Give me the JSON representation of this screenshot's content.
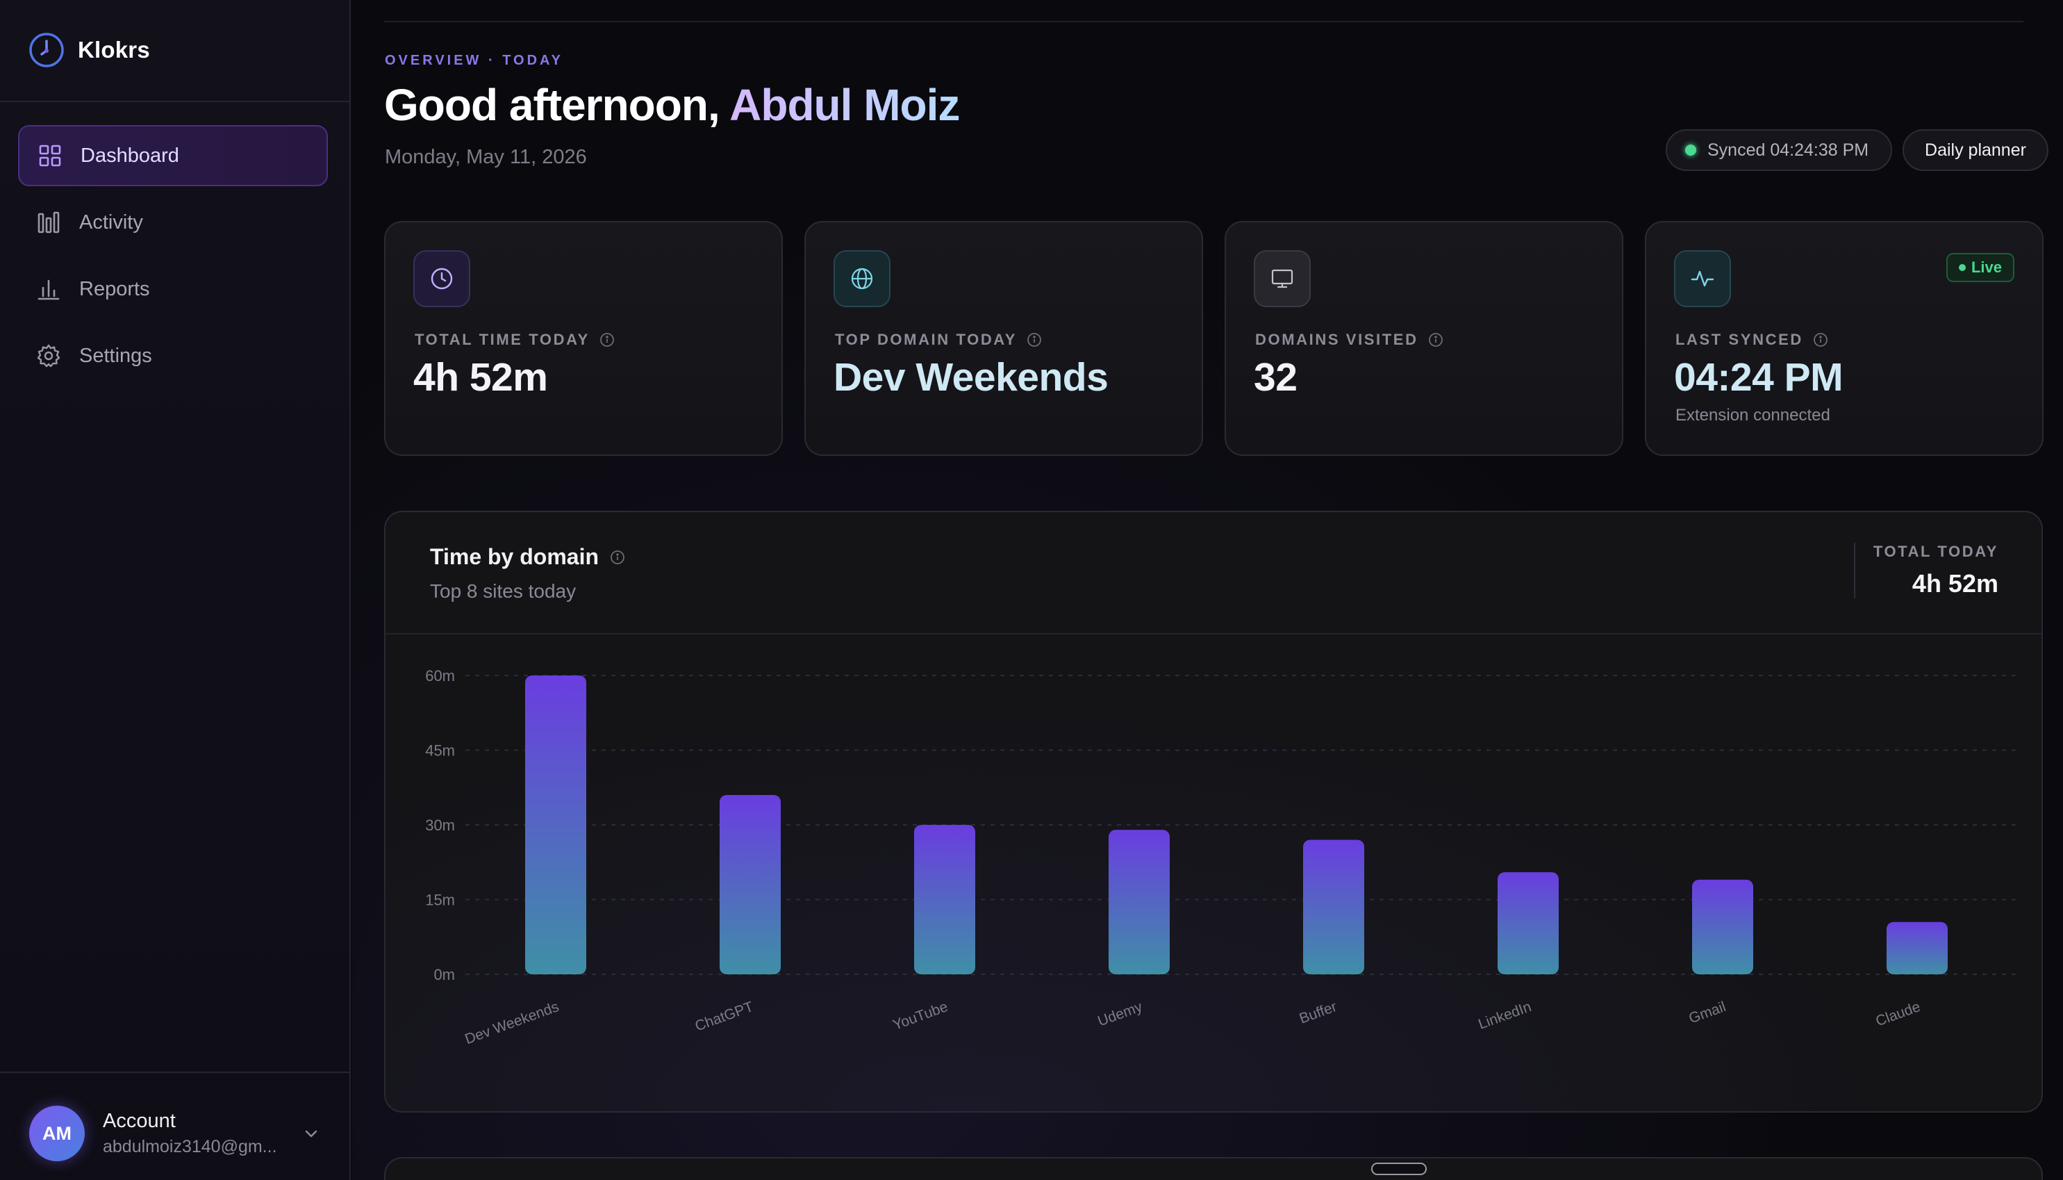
{
  "brand": {
    "name": "Klokrs"
  },
  "sidebar": {
    "items": [
      {
        "label": "Dashboard",
        "icon": "grid-icon",
        "active": true
      },
      {
        "label": "Activity",
        "icon": "activity-bars-icon",
        "active": false
      },
      {
        "label": "Reports",
        "icon": "bar-chart-icon",
        "active": false
      },
      {
        "label": "Settings",
        "icon": "gear-icon",
        "active": false
      }
    ],
    "account": {
      "initials": "AM",
      "label": "Account",
      "email": "abdulmoiz3140@gm..."
    }
  },
  "header": {
    "eyebrow": "OVERVIEW · TODAY",
    "greeting_prefix": "Good afternoon, ",
    "greeting_name": "Abdul Moiz",
    "date": "Monday, May 11, 2026",
    "sync_status": "Synced 04:24:38 PM",
    "planner_label": "Daily planner"
  },
  "stats": [
    {
      "label": "TOTAL TIME TODAY",
      "value": "4h 52m",
      "icon": "clock-icon"
    },
    {
      "label": "TOP DOMAIN TODAY",
      "value": "Dev Weekends",
      "icon": "globe-icon"
    },
    {
      "label": "DOMAINS VISITED",
      "value": "32",
      "icon": "monitor-icon"
    },
    {
      "label": "LAST SYNCED",
      "value": "04:24 PM",
      "sub": "Extension connected",
      "icon": "pulse-icon",
      "badge": "Live"
    }
  ],
  "chart_panel": {
    "title": "Time by domain",
    "subtitle": "Top 8 sites today",
    "total_label": "TOTAL TODAY",
    "total_value": "4h 52m"
  },
  "colors": {
    "accent": "#8a78e6",
    "bar_top": "#6a3de0",
    "bar_bottom": "#3f8fa6",
    "live": "#4ad991"
  },
  "chart_data": {
    "type": "bar",
    "categories": [
      "Dev Weekends",
      "ChatGPT",
      "YouTube",
      "Udemy",
      "Buffer",
      "LinkedIn",
      "Gmail",
      "Claude"
    ],
    "values": [
      60,
      36,
      30,
      29,
      27,
      20.5,
      19,
      10.5
    ],
    "y_ticks": [
      0,
      15,
      30,
      45,
      60
    ],
    "y_tick_labels": [
      "0m",
      "15m",
      "30m",
      "45m",
      "60m"
    ],
    "ylim": [
      0,
      60
    ],
    "unit": "minutes",
    "grid": true,
    "x_tick_rotation": "tilted"
  }
}
